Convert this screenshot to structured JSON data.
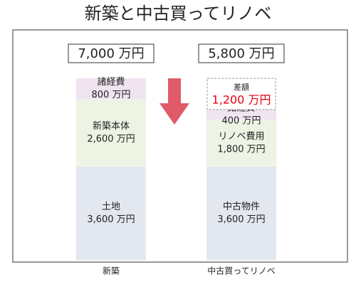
{
  "chart_data": {
    "type": "stacked-bar",
    "title": "新築と中古買ってリノベ",
    "categories": [
      "新築",
      "中古買ってリノベ"
    ],
    "stacks": [
      {
        "total": 7000,
        "total_label": "7,000 万円",
        "segments": [
          {
            "name": "土地",
            "value": 3600,
            "value_label": "3,600 万円",
            "color": "#e3e7f0"
          },
          {
            "name": "新築本体",
            "value": 2600,
            "value_label": "2,600 万円",
            "color": "#eef4e4"
          },
          {
            "name": "諸経費",
            "value": 800,
            "value_label": "800 万円",
            "color": "#f0e4f0"
          }
        ]
      },
      {
        "total": 5800,
        "total_label": "5,800 万円",
        "segments": [
          {
            "name": "中古物件",
            "value": 3600,
            "value_label": "3,600 万円",
            "color": "#e3e7f0"
          },
          {
            "name": "リノベ費用",
            "value": 1800,
            "value_label": "1,800 万円",
            "color": "#eef4e4"
          },
          {
            "name": "諸経費",
            "value": 400,
            "value_label": "400 万円",
            "color": "#f0e4f0"
          },
          {
            "name": "差額",
            "value": 1200,
            "value_label": "1,200 万円",
            "color": "#ffffff",
            "dashed": true,
            "label_color": "#e60012"
          }
        ]
      }
    ]
  }
}
